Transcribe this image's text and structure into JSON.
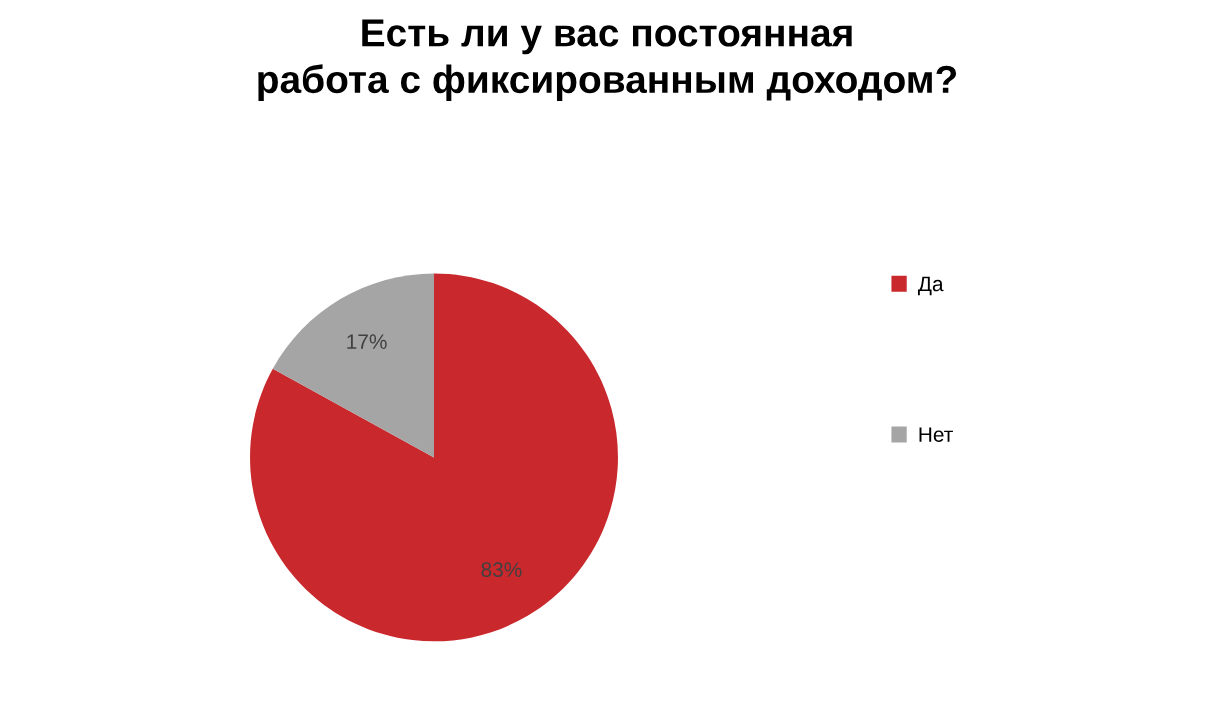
{
  "chart_data": {
    "type": "pie",
    "title": "Есть ли у вас постоянная работа с фиксированным доходом?",
    "categories": [
      "Да",
      "Нет"
    ],
    "values": [
      83,
      17
    ],
    "colors": [
      "#c9282d",
      "#a5a5a5"
    ],
    "value_labels": [
      "83%",
      "17%"
    ],
    "legend": "right"
  }
}
